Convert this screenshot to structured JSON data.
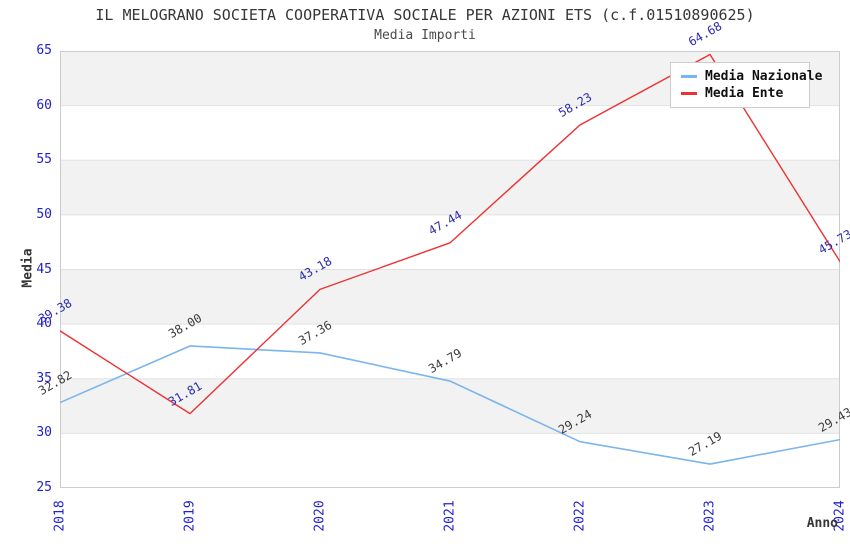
{
  "chart_data": {
    "type": "line",
    "title": "IL MELOGRANO SOCIETA COOPERATIVA SOCIALE PER AZIONI ETS (c.f.01510890625)",
    "subtitle": "Media Importi",
    "xlabel": "Anno",
    "ylabel": "Media",
    "x": [
      2018,
      2019,
      2020,
      2021,
      2022,
      2023,
      2024
    ],
    "xlim": [
      2018,
      2024
    ],
    "ylim": [
      25,
      65
    ],
    "y_ticks": [
      25,
      30,
      35,
      40,
      45,
      50,
      55,
      60,
      65
    ],
    "grid": "alternating horizontal bands every 5 units, light gray / white",
    "legend_position": "top-right",
    "series": [
      {
        "name": "Media Nazionale",
        "color": "#7cb5ec",
        "label_color": "#3c3c3c",
        "values": [
          32.82,
          38.0,
          37.36,
          34.79,
          29.24,
          27.19,
          29.43
        ]
      },
      {
        "name": "Media Ente",
        "color": "#ec3232",
        "label_color": "#2a2ab0",
        "values": [
          39.38,
          31.81,
          43.18,
          47.44,
          58.23,
          64.68,
          45.73
        ]
      }
    ]
  },
  "style_colors": {
    "tick_color": "#2222cc",
    "band_fill": "#f2f2f2",
    "grid_line": "#e2e2e2",
    "plot_border": "#cccccc",
    "title_color": "#363636"
  }
}
